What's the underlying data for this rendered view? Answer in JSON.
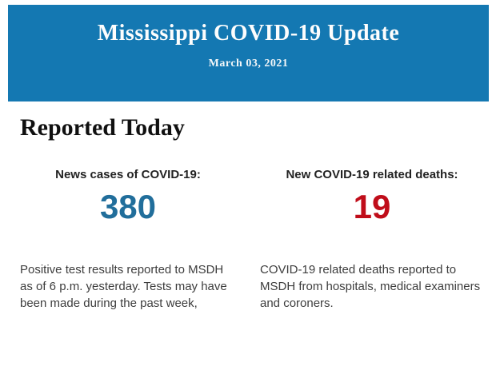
{
  "header": {
    "title": "Mississippi COVID-19 Update",
    "date": "March 03, 2021",
    "background_color": "#1478b2",
    "text_color": "#fdfdfd"
  },
  "section": {
    "title": "Reported Today"
  },
  "stats": [
    {
      "label": "News cases of COVID-19:",
      "value": "380",
      "value_color": "#216e9b",
      "description": "Positive test results reported to MSDH as of 6 p.m. yesterday. Tests may have been made during the past week,"
    },
    {
      "label": "New COVID-19 related deaths:",
      "value": "19",
      "value_color": "#c00d1a",
      "description": "COVID-19 related deaths reported to MSDH from hospitals, medical examiners and coroners."
    }
  ]
}
